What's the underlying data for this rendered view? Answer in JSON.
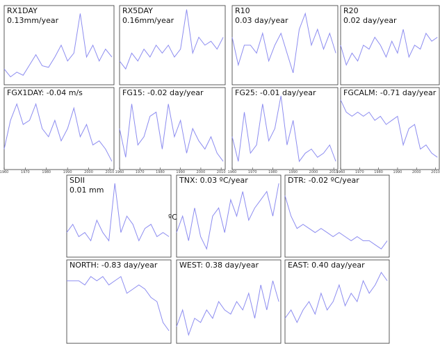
{
  "chart_data": [
    {
      "type": "line",
      "title": "RX1DAY",
      "subtitle": "0.13mm/year",
      "color": "#8c8cf0",
      "xlim": [
        1960,
        2012
      ],
      "ylim": [
        0,
        10
      ],
      "x": [
        1960,
        1963,
        1966,
        1969,
        1972,
        1975,
        1978,
        1981,
        1984,
        1987,
        1990,
        1993,
        1996,
        1999,
        2002,
        2005,
        2008,
        2011
      ],
      "values": [
        2,
        1,
        1.6,
        1.2,
        2.5,
        3.8,
        2.4,
        2.2,
        3.5,
        5,
        3,
        4,
        9,
        3.5,
        5,
        3,
        4.5,
        3.5
      ]
    },
    {
      "type": "line",
      "title": "RX5DAY",
      "subtitle": "0.16mm/year",
      "color": "#8c8cf0",
      "xlim": [
        1960,
        2012
      ],
      "ylim": [
        0,
        10
      ],
      "x": [
        1960,
        1963,
        1966,
        1969,
        1972,
        1975,
        1978,
        1981,
        1984,
        1987,
        1990,
        1993,
        1996,
        1999,
        2002,
        2005,
        2008,
        2011
      ],
      "values": [
        3,
        2,
        4,
        3,
        4.5,
        3.5,
        5,
        4,
        5,
        3.5,
        4.5,
        9.5,
        4,
        6,
        5,
        5.5,
        4.5,
        6
      ]
    },
    {
      "type": "line",
      "title": "R10",
      "subtitle": "0.03 day/year",
      "color": "#8c8cf0",
      "xlim": [
        1960,
        2012
      ],
      "ylim": [
        0,
        10
      ],
      "x": [
        1960,
        1963,
        1966,
        1969,
        1972,
        1975,
        1978,
        1981,
        1984,
        1987,
        1990,
        1993,
        1996,
        1999,
        2002,
        2005,
        2008,
        2011
      ],
      "values": [
        6,
        2.5,
        5,
        5,
        4,
        6.5,
        3,
        5,
        6.5,
        4,
        1.5,
        7,
        9,
        5,
        7,
        4.5,
        6.5,
        4
      ]
    },
    {
      "type": "line",
      "title": "R20",
      "subtitle": "0.02 day/year",
      "color": "#8c8cf0",
      "xlim": [
        1960,
        2012
      ],
      "ylim": [
        0,
        10
      ],
      "x": [
        1960,
        1963,
        1966,
        1969,
        1972,
        1975,
        1978,
        1981,
        1984,
        1987,
        1990,
        1993,
        1996,
        1999,
        2002,
        2005,
        2008,
        2011
      ],
      "values": [
        5,
        2.5,
        4,
        3,
        5,
        4.5,
        6,
        5,
        3.5,
        5.5,
        4,
        7,
        3.5,
        5,
        4.5,
        6.5,
        5.5,
        6
      ]
    },
    {
      "type": "line",
      "title": "FGX1DAY: -0.04 m/s",
      "color": "#8c8cf0",
      "xlim": [
        1960,
        2012
      ],
      "ylim": [
        0,
        10
      ],
      "xticks": [
        1960,
        1970,
        1980,
        1990,
        2000,
        2010
      ],
      "x": [
        1960,
        1963,
        1966,
        1969,
        1972,
        1975,
        1978,
        1981,
        1984,
        1987,
        1990,
        1993,
        1996,
        1999,
        2002,
        2005,
        2008,
        2011
      ],
      "values": [
        2.5,
        6,
        8,
        5.5,
        6,
        8,
        5,
        4,
        6,
        3.5,
        5,
        7.5,
        4,
        5.5,
        3,
        3.5,
        2.5,
        1
      ]
    },
    {
      "type": "line",
      "title": "FG15: -0.02 day/year",
      "color": "#8c8cf0",
      "xlim": [
        1960,
        2012
      ],
      "ylim": [
        0,
        10
      ],
      "xticks": [
        1960,
        1970,
        1980,
        1990,
        2000,
        2010
      ],
      "x": [
        1960,
        1963,
        1966,
        1969,
        1972,
        1975,
        1978,
        1981,
        1984,
        1987,
        1990,
        1993,
        1996,
        1999,
        2002,
        2005,
        2008,
        2011
      ],
      "values": [
        5,
        1.5,
        8,
        3,
        4,
        6.5,
        7,
        2.5,
        8,
        4,
        6,
        2,
        5,
        3.5,
        2.5,
        4,
        2,
        1
      ]
    },
    {
      "type": "line",
      "title": "FG25: -0.01 day/year",
      "color": "#8c8cf0",
      "xlim": [
        1960,
        2012
      ],
      "ylim": [
        0,
        10
      ],
      "xticks": [
        1960,
        1970,
        1980,
        1990,
        2000,
        2010
      ],
      "x": [
        1960,
        1963,
        1966,
        1969,
        1972,
        1975,
        1978,
        1981,
        1984,
        1987,
        1990,
        1993,
        1996,
        1999,
        2002,
        2005,
        2008,
        2011
      ],
      "values": [
        4,
        1,
        7,
        2,
        3,
        8,
        3.5,
        5,
        9,
        3,
        6,
        1,
        2,
        2.5,
        1.5,
        2,
        3,
        1
      ]
    },
    {
      "type": "line",
      "title": "FGCALM: -0.71 day/year",
      "color": "#8c8cf0",
      "xlim": [
        1960,
        2012
      ],
      "ylim": [
        0,
        10
      ],
      "xticks": [
        1960,
        1970,
        1980,
        1990,
        2000,
        2010
      ],
      "x": [
        1960,
        1963,
        1966,
        1969,
        1972,
        1975,
        1978,
        1981,
        1984,
        1987,
        1990,
        1993,
        1996,
        1999,
        2002,
        2005,
        2008,
        2011
      ],
      "values": [
        8.5,
        7,
        6.5,
        7,
        6.5,
        7,
        6,
        6.5,
        5.5,
        6,
        6.5,
        3,
        5,
        5.5,
        2.5,
        3,
        2,
        1.5
      ]
    },
    {
      "type": "line",
      "title": "SDII",
      "subtitle": "0.01 mm",
      "color": "#8c8cf0",
      "xlim": [
        1960,
        2012
      ],
      "ylim": [
        0,
        10
      ],
      "x": [
        1960,
        1963,
        1966,
        1969,
        1972,
        1975,
        1978,
        1981,
        1984,
        1987,
        1990,
        1993,
        1996,
        1999,
        2002,
        2005,
        2008,
        2011
      ],
      "values": [
        3,
        4,
        2.5,
        3,
        2,
        4.5,
        3,
        2,
        9,
        3,
        5,
        4,
        2,
        3.5,
        4,
        2.5,
        3,
        2.5
      ]
    },
    {
      "type": "line",
      "title": "TNX: 0.03 ºC/year",
      "y_label": "ºC",
      "color": "#8c8cf0",
      "xlim": [
        1960,
        2012
      ],
      "ylim": [
        0,
        10
      ],
      "x": [
        1960,
        1963,
        1966,
        1969,
        1972,
        1975,
        1978,
        1981,
        1984,
        1987,
        1990,
        1993,
        1996,
        1999,
        2002,
        2005,
        2008,
        2011
      ],
      "values": [
        3,
        5,
        2,
        6,
        2.5,
        1,
        5,
        6,
        3,
        7,
        5,
        8,
        4.5,
        6,
        7,
        8,
        5,
        9
      ]
    },
    {
      "type": "line",
      "title": "DTR: -0.02 ºC/year",
      "color": "#8c8cf0",
      "xlim": [
        1960,
        2012
      ],
      "ylim": [
        0,
        10
      ],
      "x": [
        1960,
        1963,
        1966,
        1969,
        1972,
        1975,
        1978,
        1981,
        1984,
        1987,
        1990,
        1993,
        1996,
        1999,
        2002,
        2005,
        2008,
        2011
      ],
      "values": [
        7.5,
        5,
        3.5,
        4,
        3.5,
        3,
        3.5,
        3,
        2.5,
        3,
        2.5,
        2,
        2.5,
        2,
        2,
        1.5,
        1,
        2
      ]
    },
    {
      "type": "line",
      "title": "NORTH: -0.83 day/year",
      "color": "#8c8cf0",
      "xlim": [
        1960,
        2012
      ],
      "ylim": [
        0,
        10
      ],
      "x": [
        1960,
        1963,
        1966,
        1969,
        1972,
        1975,
        1978,
        1981,
        1984,
        1987,
        1990,
        1993,
        1996,
        1999,
        2002,
        2005,
        2008,
        2011
      ],
      "values": [
        7.5,
        7.5,
        7.5,
        7,
        8,
        7.5,
        8,
        7,
        7.5,
        8,
        6,
        6.5,
        7,
        6.5,
        5.5,
        5,
        2.5,
        1.5
      ]
    },
    {
      "type": "line",
      "title": "WEST: 0.38 day/year",
      "color": "#8c8cf0",
      "xlim": [
        1960,
        2012
      ],
      "ylim": [
        0,
        10
      ],
      "x": [
        1960,
        1963,
        1966,
        1969,
        1972,
        1975,
        1978,
        1981,
        1984,
        1987,
        1990,
        1993,
        1996,
        1999,
        2002,
        2005,
        2008,
        2011
      ],
      "values": [
        2,
        4,
        1,
        3,
        2.5,
        4,
        3,
        5,
        4,
        3.5,
        5,
        4,
        6,
        3,
        7,
        4,
        7.5,
        5
      ]
    },
    {
      "type": "line",
      "title": "EAST: 0.40 day/year",
      "color": "#8c8cf0",
      "xlim": [
        1960,
        2012
      ],
      "ylim": [
        0,
        10
      ],
      "x": [
        1960,
        1963,
        1966,
        1969,
        1972,
        1975,
        1978,
        1981,
        1984,
        1987,
        1990,
        1993,
        1996,
        1999,
        2002,
        2005,
        2008,
        2011
      ],
      "values": [
        3,
        4,
        2.5,
        4,
        5,
        3.5,
        6,
        4,
        5,
        7,
        4.5,
        6,
        5,
        7.5,
        6,
        7,
        8.5,
        7.5
      ]
    }
  ]
}
